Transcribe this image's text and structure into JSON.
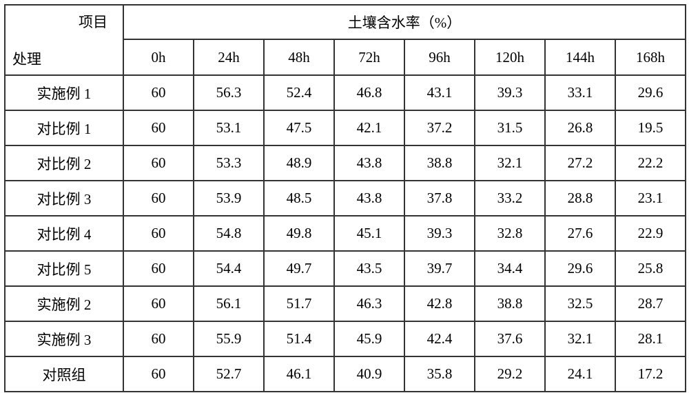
{
  "corner": {
    "top": "项目",
    "bottom": "处理"
  },
  "groupHeader": "土壤含水率（%）",
  "timeHeaders": [
    "0h",
    "24h",
    "48h",
    "72h",
    "96h",
    "120h",
    "144h",
    "168h"
  ],
  "rows": [
    {
      "label": "实施例 1",
      "values": [
        "60",
        "56.3",
        "52.4",
        "46.8",
        "43.1",
        "39.3",
        "33.1",
        "29.6"
      ]
    },
    {
      "label": "对比例 1",
      "values": [
        "60",
        "53.1",
        "47.5",
        "42.1",
        "37.2",
        "31.5",
        "26.8",
        "19.5"
      ]
    },
    {
      "label": "对比例 2",
      "values": [
        "60",
        "53.3",
        "48.9",
        "43.8",
        "38.8",
        "32.1",
        "27.2",
        "22.2"
      ]
    },
    {
      "label": "对比例 3",
      "values": [
        "60",
        "53.9",
        "48.5",
        "43.8",
        "37.8",
        "33.2",
        "28.8",
        "23.1"
      ]
    },
    {
      "label": "对比例 4",
      "values": [
        "60",
        "54.8",
        "49.8",
        "45.1",
        "39.3",
        "32.8",
        "27.6",
        "22.9"
      ]
    },
    {
      "label": "对比例 5",
      "values": [
        "60",
        "54.4",
        "49.7",
        "43.5",
        "39.7",
        "34.4",
        "29.6",
        "25.8"
      ]
    },
    {
      "label": "实施例 2",
      "values": [
        "60",
        "56.1",
        "51.7",
        "46.3",
        "42.8",
        "38.8",
        "32.5",
        "28.7"
      ]
    },
    {
      "label": "实施例 3",
      "values": [
        "60",
        "55.9",
        "51.4",
        "45.9",
        "42.4",
        "37.6",
        "32.1",
        "28.1"
      ]
    },
    {
      "label": "对照组",
      "values": [
        "60",
        "52.7",
        "46.1",
        "40.9",
        "35.8",
        "29.2",
        "24.1",
        "17.2"
      ]
    }
  ]
}
